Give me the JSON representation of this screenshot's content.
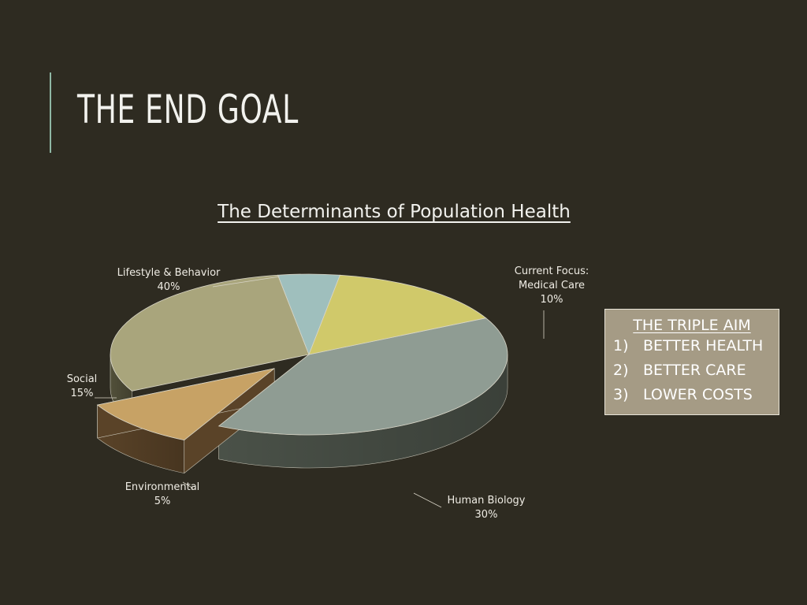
{
  "slide": {
    "title": "THE END GOAL"
  },
  "chart_data": {
    "type": "pie",
    "title": "The Determinants of Population Health",
    "slices": [
      {
        "name": "Lifestyle & Behavior",
        "value": 40,
        "value_label": "40%",
        "color": "#8f9c93",
        "side_color": "#4a5148"
      },
      {
        "name": "Current Focus: Medical Care",
        "name_lines": [
          "Current Focus:",
          "Medical Care"
        ],
        "value": 10,
        "value_label": "10%",
        "color": "#c7a265",
        "side_color": "#5a4328",
        "exploded": true
      },
      {
        "name": "Human Biology",
        "value": 30,
        "value_label": "30%",
        "color": "#a9a57c",
        "side_color": "#52503a"
      },
      {
        "name": "Environmental",
        "value": 5,
        "value_label": "5%",
        "color": "#9fbfbd",
        "side_color": "#5c6f6e"
      },
      {
        "name": "Social",
        "value": 15,
        "value_label": "15%",
        "color": "#d0c96a",
        "side_color": "#7e7838"
      }
    ]
  },
  "triple_aim": {
    "title": "THE TRIPLE AIM",
    "items": [
      {
        "num": "1)",
        "text": "BETTER HEALTH"
      },
      {
        "num": "2)",
        "text": "BETTER CARE"
      },
      {
        "num": "3)",
        "text": "LOWER COSTS"
      }
    ],
    "box_color": "#a59b85"
  }
}
